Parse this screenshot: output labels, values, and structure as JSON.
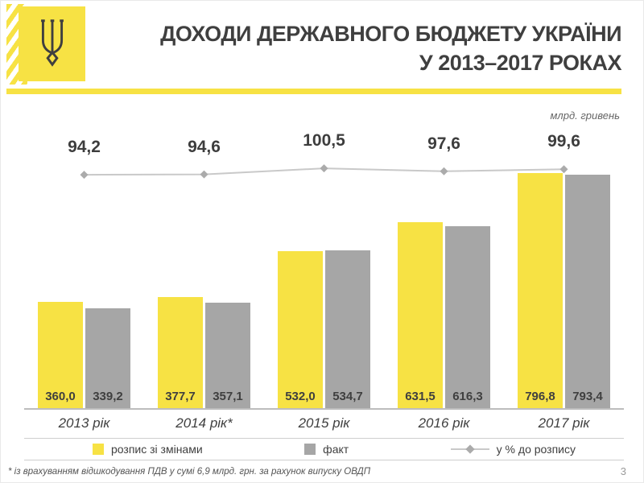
{
  "header": {
    "title_line1": "ДОХОДИ ДЕРЖАВНОГО БЮДЖЕТУ УКРАЇНИ",
    "title_line2": "У 2013–2017 РОКАХ"
  },
  "unit_label": "млрд. гривень",
  "chart_data": {
    "type": "bar",
    "subtype": "grouped bars with percent line overlay",
    "categories": [
      "2013 рік",
      "2014 рік*",
      "2015 рік",
      "2016 рік",
      "2017 рік"
    ],
    "series": [
      {
        "name": "розпис зі змінами",
        "type": "bar",
        "color": "#F7E244",
        "values": [
          360.0,
          377.7,
          532.0,
          631.5,
          796.8
        ],
        "labels": [
          "360,0",
          "377,7",
          "532,0",
          "631,5",
          "796,8"
        ]
      },
      {
        "name": "факт",
        "type": "bar",
        "color": "#A6A6A6",
        "values": [
          339.2,
          357.1,
          534.7,
          616.3,
          793.4
        ],
        "labels": [
          "339,2",
          "357,1",
          "534,7",
          "616,3",
          "793,4"
        ]
      },
      {
        "name": "у % до розпису",
        "type": "line",
        "color": "#C9C9C9",
        "marker": "diamond",
        "marker_color": "#ABABAB",
        "values": [
          94.2,
          94.6,
          100.5,
          97.6,
          99.6
        ],
        "labels": [
          "94,2",
          "94,6",
          "100,5",
          "97,6",
          "99,6"
        ]
      }
    ],
    "title": "ДОХОДИ ДЕРЖАВНОГО БЮДЖЕТУ УКРАЇНИ У 2013–2017 РОКАХ",
    "ylabel": "млрд. гривень",
    "ylim": [
      0,
      900
    ],
    "grid": false,
    "legend_position": "bottom"
  },
  "legend": [
    {
      "kind": "swatch",
      "color": "#F7E244",
      "label": "розпис зі змінами"
    },
    {
      "kind": "swatch",
      "color": "#A6A6A6",
      "label": "факт"
    },
    {
      "kind": "line",
      "color": "#C9C9C9",
      "label": "у % до розпису"
    }
  ],
  "footnote": "* із врахуванням відшкодування ПДВ у сумі 6,9 млрд. грн. за рахунок випуску ОВДП",
  "page_number": "3",
  "colors": {
    "accent_yellow": "#F7E244",
    "bar_gray": "#A6A6A6",
    "text_dark": "#3F3F3F"
  }
}
